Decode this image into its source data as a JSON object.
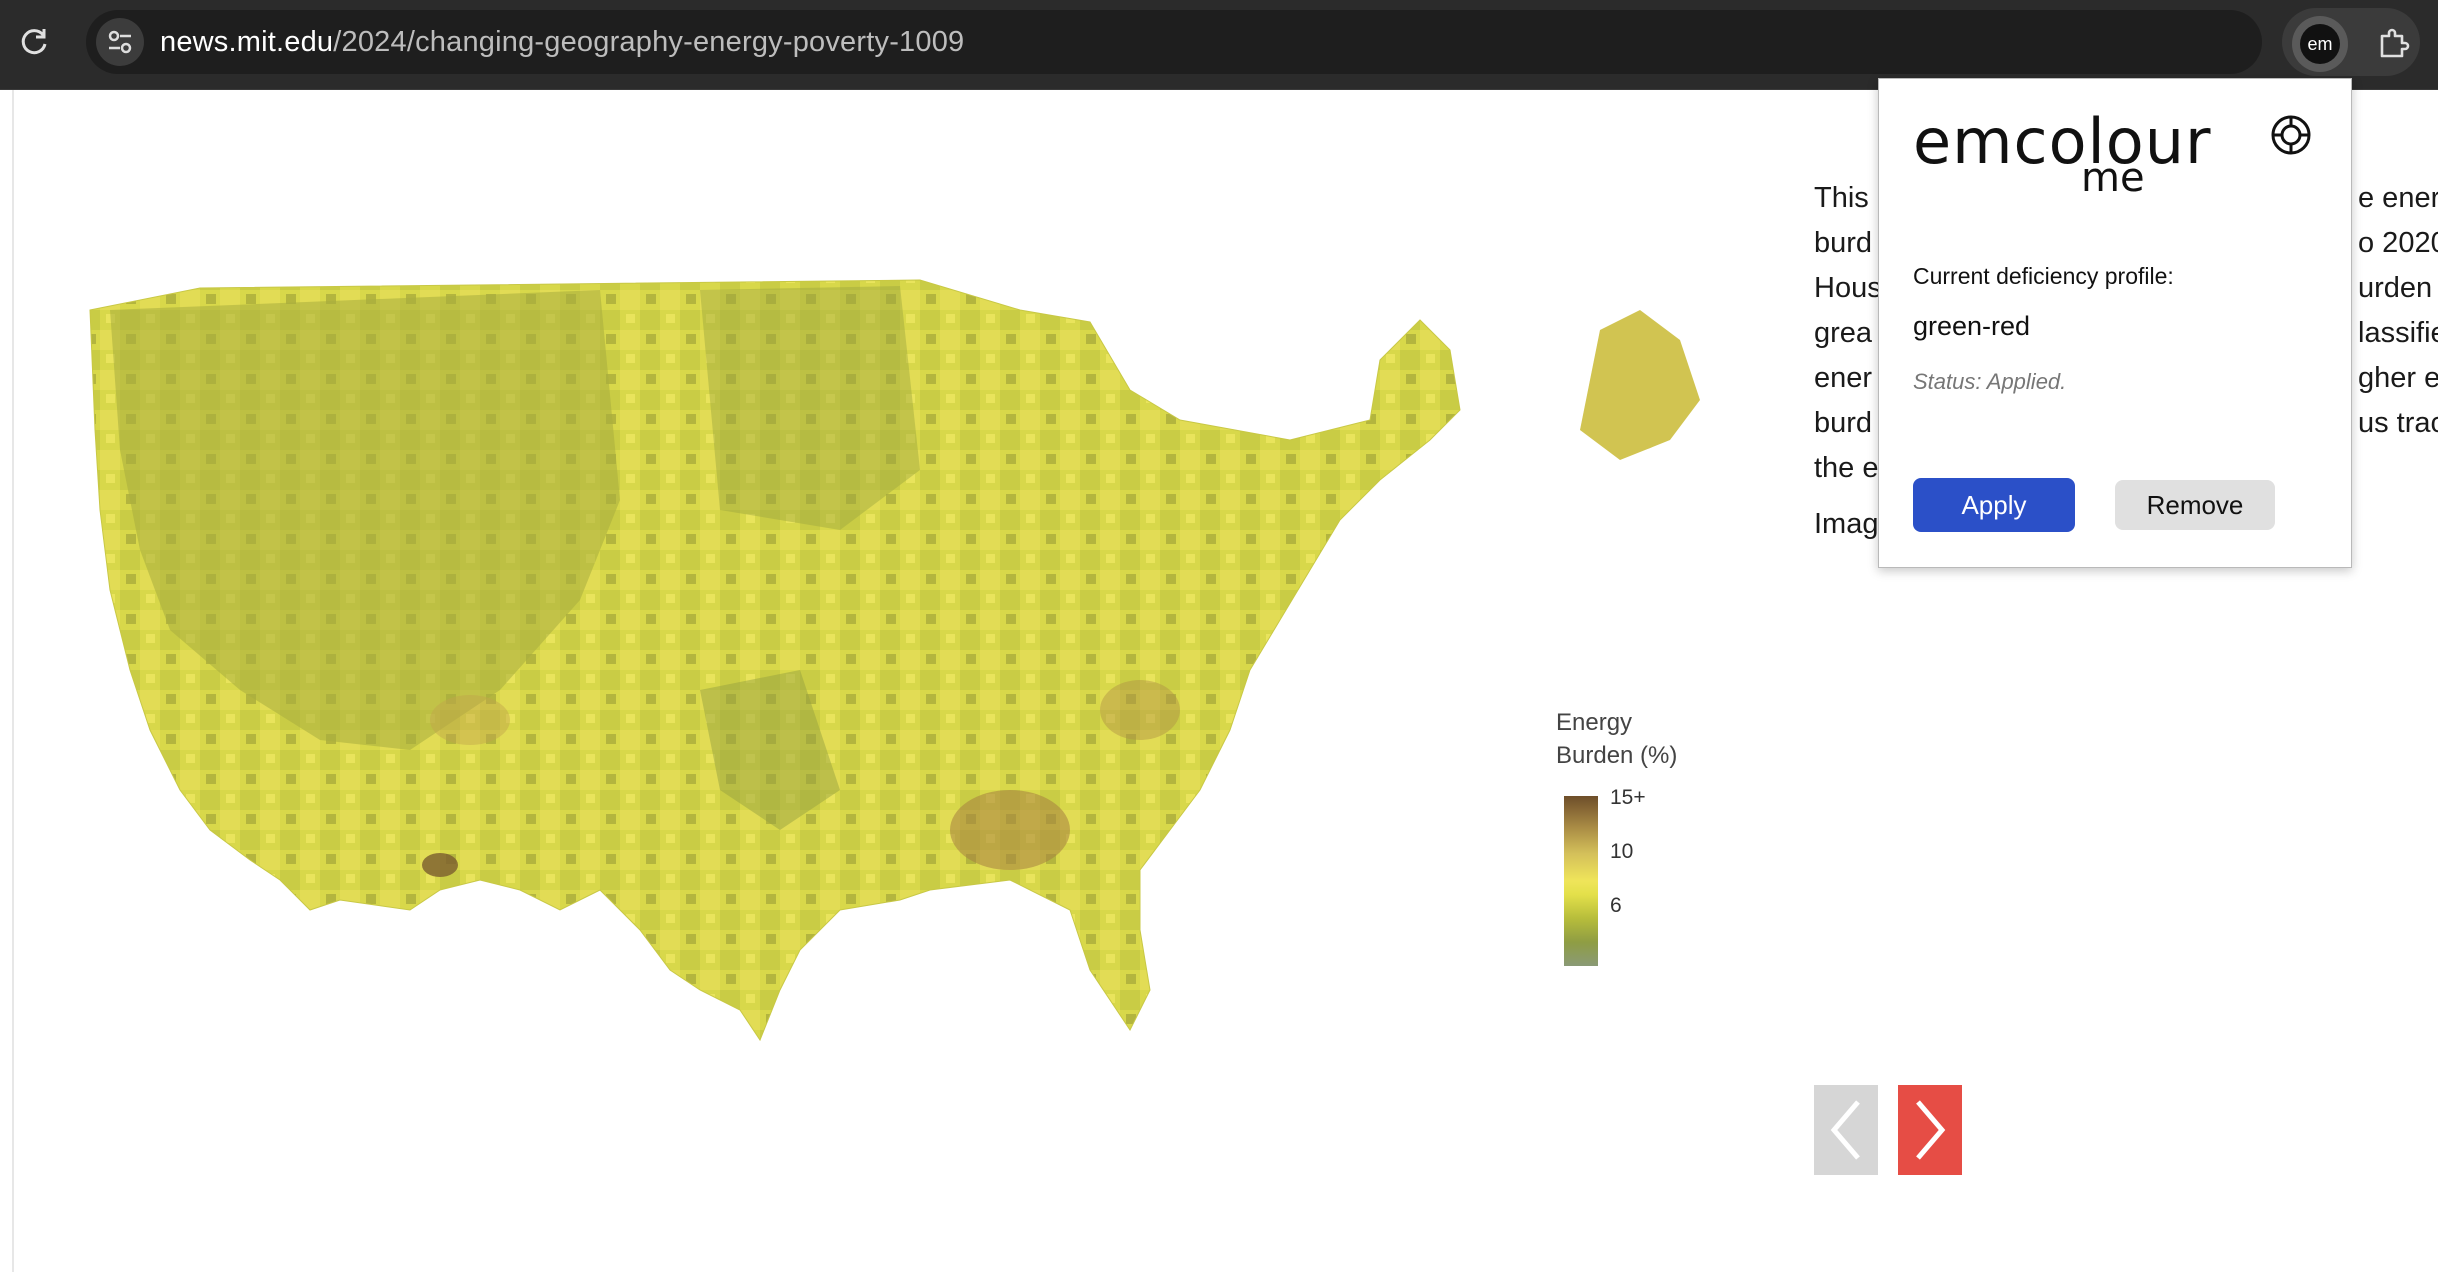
{
  "browser": {
    "url_host": "news.mit.edu",
    "url_path": "/2024/changing-geography-energy-poverty-1009",
    "extension_badge": "em",
    "icons": [
      "reload-icon",
      "site-info-icon",
      "star-icon",
      "puzzle-icon"
    ]
  },
  "article": {
    "caption_lines": [
      "This",
      "burd",
      "Hous",
      "grea",
      "ener",
      "burd",
      "the e"
    ],
    "caption_lines_right": [
      "e ener",
      "o 2020",
      "urden i",
      "lassifie",
      "gher e",
      "us tract",
      ""
    ],
    "credit": "Imag",
    "map": {
      "legend_title_line1": "Energy",
      "legend_title_line2": "Burden (%)",
      "legend_ticks": [
        "15+",
        "10",
        "6"
      ],
      "colors": {
        "low": "#8a9a76",
        "mid": "#efe55a",
        "high": "#6e4e2a"
      }
    },
    "gallery_nav": {
      "prev": "chevron-left-icon",
      "next": "chevron-right-icon",
      "next_color": "#e64d45"
    }
  },
  "popup": {
    "logo_main": "emcolour",
    "logo_sub": "me",
    "profile_label": "Current deficiency profile:",
    "profile_value": "green-red",
    "status": "Status: Applied.",
    "apply_label": "Apply",
    "remove_label": "Remove",
    "accent": "#2b50c8"
  }
}
